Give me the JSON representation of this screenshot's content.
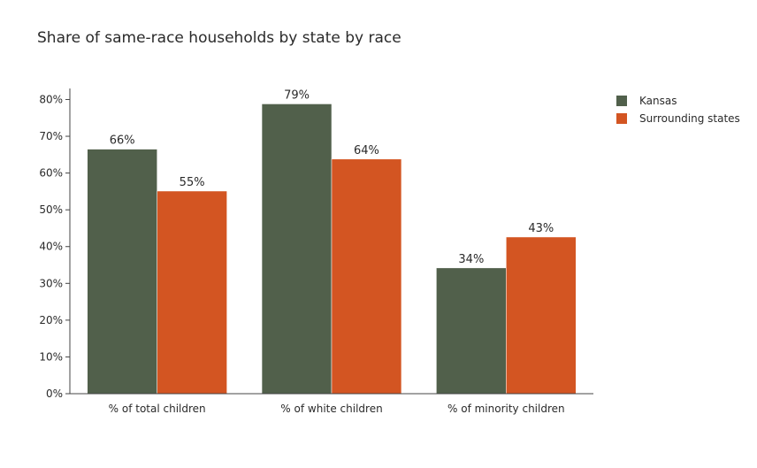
{
  "chart_data": {
    "type": "bar",
    "title": "Share of same-race households by state by race",
    "categories": [
      "% of total children",
      "% of white children",
      "% of minority children"
    ],
    "series": [
      {
        "name": "Kansas",
        "color": "#51604b",
        "values": [
          66.5,
          78.8,
          34.2
        ],
        "labels": [
          "66%",
          "79%",
          "34%"
        ]
      },
      {
        "name": "Surrounding states",
        "color": "#d35522",
        "values": [
          55.1,
          63.8,
          42.6
        ],
        "labels": [
          "55%",
          "64%",
          "43%"
        ]
      }
    ],
    "ylim": [
      0,
      83
    ],
    "yticks": [
      0,
      10,
      20,
      30,
      40,
      50,
      60,
      70,
      80
    ],
    "ytick_labels": [
      "0%",
      "10%",
      "20%",
      "30%",
      "40%",
      "50%",
      "60%",
      "70%",
      "80%"
    ],
    "grid": false,
    "legend_position": "top-right"
  }
}
